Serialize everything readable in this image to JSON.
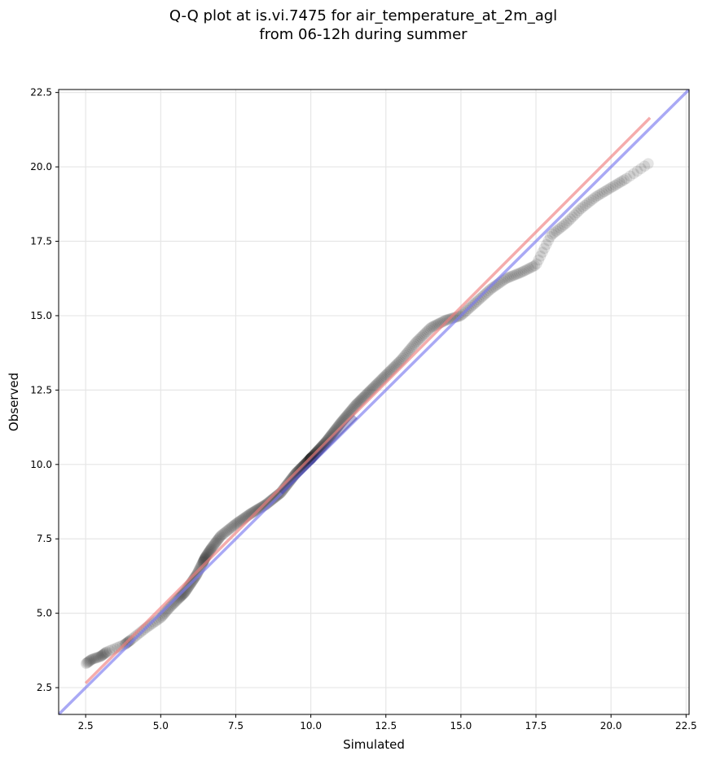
{
  "chart_data": {
    "type": "scatter",
    "title_line1": "Q-Q plot at is.vi.7475 for air_temperature_at_2m_agl",
    "title_line2": "from 06-12h during summer",
    "xlabel": "Simulated",
    "ylabel": "Observed",
    "xlim": [
      1.6,
      22.6
    ],
    "ylim": [
      1.6,
      22.6
    ],
    "xticks": [
      "2.5",
      "5.0",
      "7.5",
      "10.0",
      "12.5",
      "15.0",
      "17.5",
      "20.0",
      "22.5"
    ],
    "yticks": [
      "2.5",
      "5.0",
      "7.5",
      "10.0",
      "12.5",
      "15.0",
      "17.5",
      "20.0",
      "22.5"
    ],
    "grid": true,
    "colors": {
      "points": "#333333",
      "fit_line": "#f08080",
      "identity_line": "#7b7bf0",
      "central_overlay": "#2a2a8a"
    },
    "fit_line": {
      "x": [
        2.5,
        21.3
      ],
      "y": [
        2.65,
        21.65
      ]
    },
    "identity_line": {
      "x": [
        1.6,
        22.6
      ],
      "y": [
        1.6,
        22.6
      ]
    },
    "quantile_anchors": {
      "x": [
        2.5,
        2.7,
        3.0,
        3.2,
        3.8,
        4.0,
        4.5,
        5.0,
        5.3,
        5.6,
        5.8,
        6.0,
        6.2,
        6.4,
        6.5,
        6.7,
        7.0,
        7.5,
        8.0,
        8.5,
        9.0,
        9.5,
        10.0,
        10.5,
        11.0,
        11.5,
        12.0,
        12.5,
        13.0,
        13.5,
        14.0,
        14.5,
        15.0,
        15.5,
        16.0,
        16.5,
        17.0,
        17.5,
        18.0,
        18.5,
        19.0,
        19.5,
        20.0,
        20.5,
        21.3
      ],
      "y": [
        3.3,
        3.45,
        3.55,
        3.7,
        3.95,
        4.1,
        4.5,
        4.85,
        5.2,
        5.5,
        5.7,
        6.0,
        6.3,
        6.7,
        6.9,
        7.2,
        7.6,
        8.0,
        8.35,
        8.65,
        9.05,
        9.7,
        10.2,
        10.75,
        11.4,
        12.0,
        12.5,
        13.0,
        13.5,
        14.1,
        14.6,
        14.85,
        15.0,
        15.45,
        15.9,
        16.25,
        16.45,
        16.7,
        17.7,
        18.1,
        18.6,
        19.0,
        19.3,
        19.6,
        20.15
      ]
    },
    "n_points": 520
  }
}
